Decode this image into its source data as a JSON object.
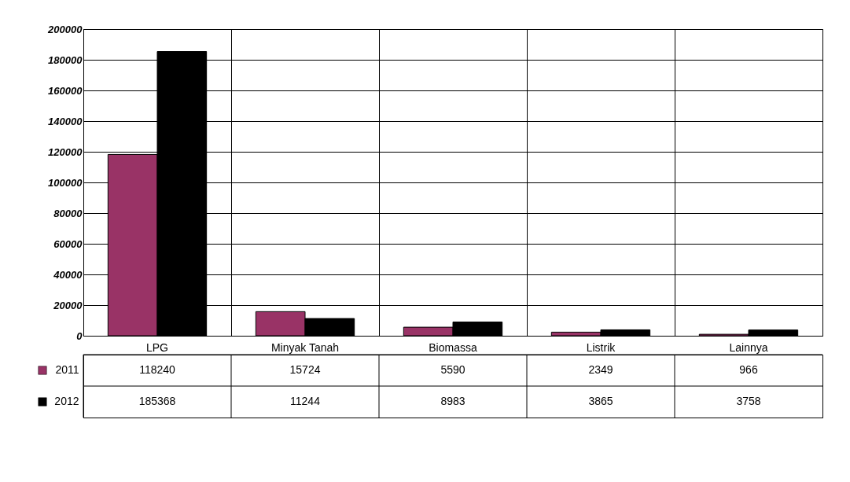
{
  "chart_data": {
    "type": "bar",
    "categories": [
      "LPG",
      "Minyak Tanah",
      "Biomassa",
      "Listrik",
      "Lainnya"
    ],
    "series": [
      {
        "name": "2011",
        "color": "#993366",
        "values": [
          118240,
          15724,
          5590,
          2349,
          966
        ]
      },
      {
        "name": "2012",
        "color": "#000000",
        "values": [
          185368,
          11244,
          8983,
          3865,
          3758
        ]
      }
    ],
    "ylim": [
      0,
      200000
    ],
    "yticks": [
      0,
      20000,
      40000,
      60000,
      80000,
      100000,
      120000,
      140000,
      160000,
      180000,
      200000
    ],
    "grid": true,
    "legend": "bottom",
    "data_labels": true
  }
}
